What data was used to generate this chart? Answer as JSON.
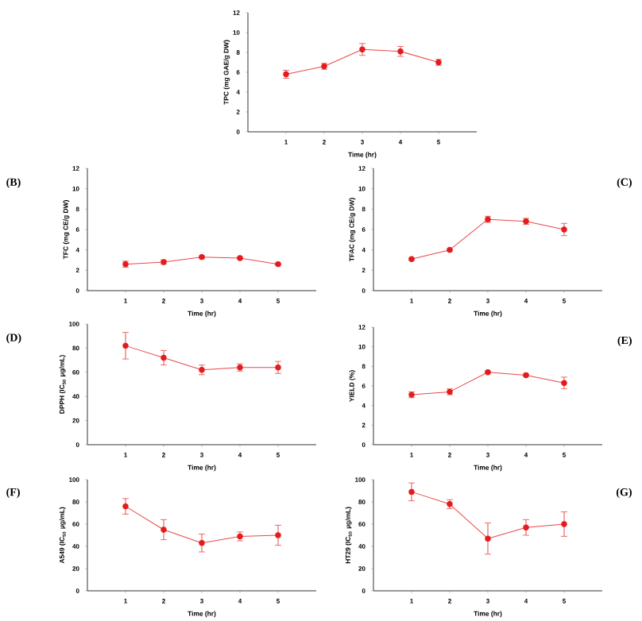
{
  "chart_data": [
    {
      "type": "line",
      "x": [
        1,
        2,
        3,
        4,
        5
      ],
      "xlim": [
        0,
        6
      ],
      "xticks": [
        1,
        2,
        3,
        4,
        5
      ],
      "ylim": [
        0,
        12
      ],
      "yticks": [
        0,
        2,
        4,
        6,
        8,
        10,
        12
      ],
      "xlabel": "Time (hr)",
      "ylabel": "TPC (mg GAE/g DW)",
      "color": "#e41a1c",
      "marker": "circle",
      "values": [
        5.8,
        6.6,
        8.3,
        8.1,
        7.0
      ],
      "errors": [
        0.4,
        0.3,
        0.6,
        0.5,
        0.3
      ]
    },
    {
      "type": "line",
      "x": [
        1,
        2,
        3,
        4,
        5
      ],
      "xlim": [
        0,
        6
      ],
      "xticks": [
        1,
        2,
        3,
        4,
        5
      ],
      "ylim": [
        0,
        12
      ],
      "yticks": [
        0,
        2,
        4,
        6,
        8,
        10,
        12
      ],
      "xlabel": "Time (hr)",
      "ylabel": "TFC (mg CE/g DW)",
      "color": "#e41a1c",
      "marker": "circle",
      "values": [
        2.6,
        2.8,
        3.3,
        3.2,
        2.6
      ],
      "errors": [
        0.3,
        0.2,
        0.1,
        0.1,
        0.1
      ],
      "annotations": [
        "(B)"
      ]
    },
    {
      "type": "line",
      "x": [
        1,
        2,
        3,
        4,
        5
      ],
      "xlim": [
        0,
        6
      ],
      "xticks": [
        1,
        2,
        3,
        4,
        5
      ],
      "ylim": [
        0,
        12
      ],
      "yticks": [
        0,
        2,
        4,
        6,
        8,
        10,
        12
      ],
      "xlabel": "Time (hr)",
      "ylabel": "TFAC (mg CE/g DW)",
      "color": "#e41a1c",
      "marker": "circle",
      "values": [
        3.1,
        4.0,
        7.0,
        6.8,
        6.0
      ],
      "errors": [
        0.1,
        0.1,
        0.3,
        0.3,
        0.6
      ],
      "annotations": [
        "(C)"
      ]
    },
    {
      "type": "line",
      "x": [
        1,
        2,
        3,
        4,
        5
      ],
      "xlim": [
        0,
        6
      ],
      "xticks": [
        1,
        2,
        3,
        4,
        5
      ],
      "ylim": [
        0,
        100
      ],
      "yticks": [
        0,
        20,
        40,
        60,
        80,
        100
      ],
      "xlabel": "Time (hr)",
      "ylabel": "DPPH (IC$_{50}$ µg/mL)",
      "color": "#e41a1c",
      "marker": "circle",
      "values": [
        82,
        72,
        62,
        64,
        64
      ],
      "errors": [
        11,
        6,
        4,
        3,
        5
      ],
      "annotations": [
        "(D)"
      ]
    },
    {
      "type": "line",
      "x": [
        1,
        2,
        3,
        4,
        5
      ],
      "xlim": [
        0,
        6
      ],
      "xticks": [
        1,
        2,
        3,
        4,
        5
      ],
      "ylim": [
        0,
        12
      ],
      "yticks": [
        0,
        2,
        4,
        6,
        8,
        10,
        12
      ],
      "xlabel": "Time (hr)",
      "ylabel": "YIELD (%)",
      "color": "#e41a1c",
      "marker": "circle",
      "values": [
        5.1,
        5.4,
        7.4,
        7.1,
        6.3
      ],
      "errors": [
        0.3,
        0.3,
        0.1,
        0.1,
        0.6
      ],
      "annotations": [
        "(E)"
      ]
    },
    {
      "type": "line",
      "x": [
        1,
        2,
        3,
        4,
        5
      ],
      "xlim": [
        0,
        6
      ],
      "xticks": [
        1,
        2,
        3,
        4,
        5
      ],
      "ylim": [
        0,
        100
      ],
      "yticks": [
        0,
        20,
        40,
        60,
        80,
        100
      ],
      "xlabel": "Time (hr)",
      "ylabel": "A549 (IC$_{50}$ µg/mL)",
      "color": "#e41a1c",
      "marker": "circle",
      "values": [
        76,
        55,
        43,
        49,
        50
      ],
      "errors": [
        7,
        9,
        8,
        4,
        9
      ],
      "annotations": [
        "(F)"
      ]
    },
    {
      "type": "line",
      "x": [
        1,
        2,
        3,
        4,
        5
      ],
      "xlim": [
        0,
        6
      ],
      "xticks": [
        1,
        2,
        3,
        4,
        5
      ],
      "ylim": [
        0,
        100
      ],
      "yticks": [
        0,
        20,
        40,
        60,
        80,
        100
      ],
      "xlabel": "Time (hr)",
      "ylabel": "HT29 (IC$_{50}$ µg/mL)",
      "color": "#e41a1c",
      "marker": "circle",
      "values": [
        89,
        78,
        47,
        57,
        60
      ],
      "errors": [
        8,
        4,
        14,
        7,
        11
      ],
      "annotations": [
        "(G)"
      ]
    }
  ]
}
